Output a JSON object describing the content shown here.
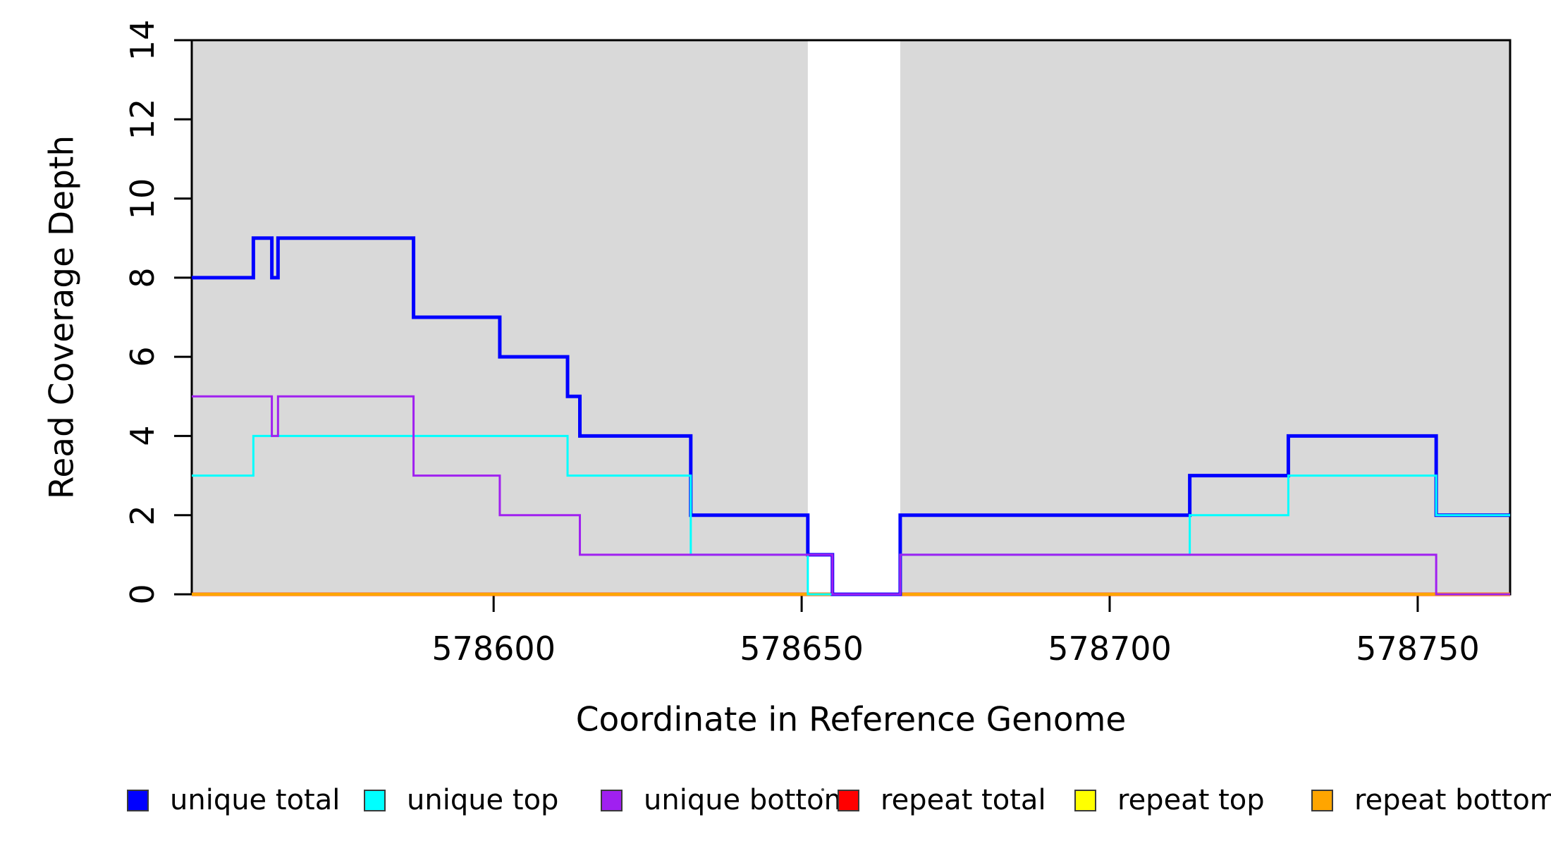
{
  "figure": {
    "background": "#ffffff",
    "axis_color": "#000000"
  },
  "chart_data": {
    "type": "line",
    "subtype": "step-after",
    "title": "",
    "xlabel": "Coordinate in Reference Genome",
    "ylabel": "Read Coverage Depth",
    "xlim": [
      578551,
      578765
    ],
    "ylim": [
      0,
      14
    ],
    "x_ticks": [
      578600,
      578650,
      578700,
      578750
    ],
    "y_ticks": [
      0,
      2,
      4,
      6,
      8,
      10,
      12,
      14
    ],
    "grid": false,
    "legend_position": "bottom",
    "shaded_regions": [
      {
        "x0": 578551,
        "x1": 578651,
        "color": "#D9D9D9"
      },
      {
        "x0": 578666,
        "x1": 578765,
        "color": "#D9D9D9"
      }
    ],
    "series": [
      {
        "name": "repeat total",
        "color": "#FF0000",
        "lwd": 5,
        "steps": [
          [
            578551,
            0
          ]
        ]
      },
      {
        "name": "repeat top",
        "color": "#FFFF00",
        "lwd": 3,
        "steps": [
          [
            578551,
            0
          ]
        ]
      },
      {
        "name": "repeat bottom",
        "color": "#FFA500",
        "lwd": 4.5,
        "steps": [
          [
            578551,
            0
          ]
        ]
      },
      {
        "name": "unique total",
        "color": "#0000FF",
        "lwd": 5,
        "steps": [
          [
            578551,
            8
          ],
          [
            578561,
            9
          ],
          [
            578564,
            8
          ],
          [
            578565,
            9
          ],
          [
            578587,
            7
          ],
          [
            578601,
            6
          ],
          [
            578612,
            5
          ],
          [
            578614,
            4
          ],
          [
            578632,
            2
          ],
          [
            578651,
            1
          ],
          [
            578655,
            0
          ],
          [
            578666,
            2
          ],
          [
            578713,
            3
          ],
          [
            578729,
            4
          ],
          [
            578753,
            2
          ]
        ]
      },
      {
        "name": "unique top",
        "color": "#00FFFF",
        "lwd": 3,
        "steps": [
          [
            578551,
            3
          ],
          [
            578561,
            4
          ],
          [
            578612,
            3
          ],
          [
            578632,
            1
          ],
          [
            578651,
            0
          ],
          [
            578666,
            1
          ],
          [
            578713,
            2
          ],
          [
            578729,
            3
          ],
          [
            578753,
            2
          ]
        ]
      },
      {
        "name": "unique bottom",
        "color": "#A020F0",
        "lwd": 3,
        "steps": [
          [
            578551,
            5
          ],
          [
            578564,
            4
          ],
          [
            578565,
            5
          ],
          [
            578587,
            3
          ],
          [
            578601,
            2
          ],
          [
            578614,
            1
          ],
          [
            578655,
            0
          ],
          [
            578666,
            1
          ],
          [
            578753,
            0
          ]
        ]
      }
    ],
    "legend": [
      {
        "label": "unique total",
        "color": "#0000FF"
      },
      {
        "label": "unique top",
        "color": "#00FFFF"
      },
      {
        "label": "unique bottom",
        "color": "#A020F0"
      },
      {
        "label": "repeat total",
        "color": "#FF0000"
      },
      {
        "label": "repeat top",
        "color": "#FFFF00"
      },
      {
        "label": "repeat bottom",
        "color": "#FFA500"
      }
    ]
  }
}
